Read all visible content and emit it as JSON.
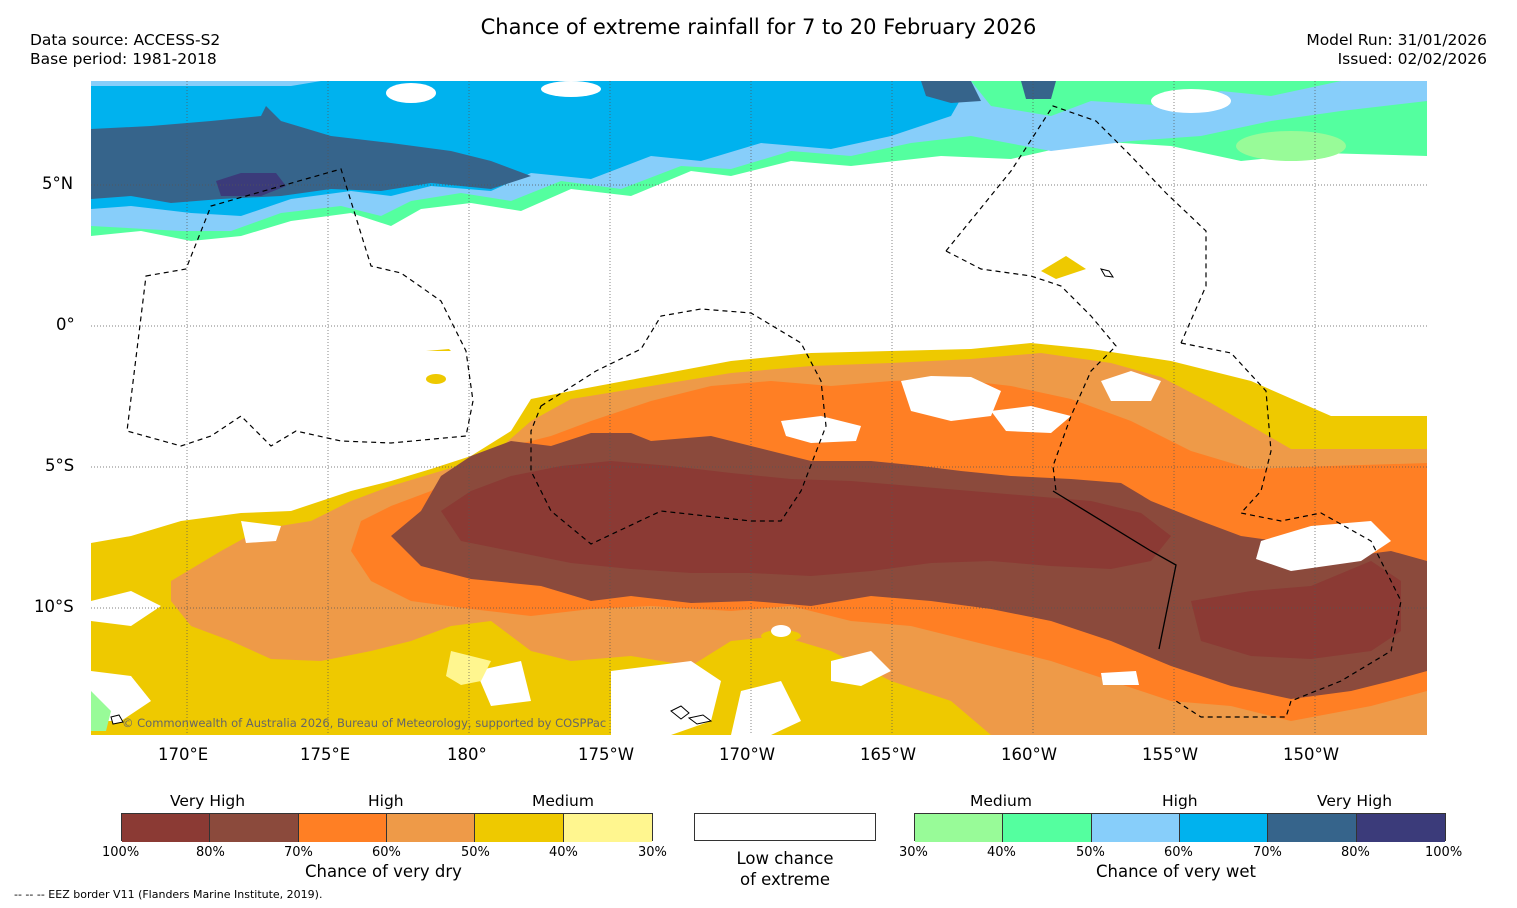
{
  "header": {
    "title": "Chance of extreme rainfall for 7 to 20 February 2026",
    "data_source": "Data source: ACCESS-S2",
    "base_period": "Base period: 1981-2018",
    "model_run": "Model Run: 31/01/2026",
    "issued": "Issued: 02/02/2026"
  },
  "map": {
    "lat_labels": [
      "5°N",
      "0°",
      "5°S",
      "10°S"
    ],
    "lon_labels": [
      "170°E",
      "175°E",
      "180°",
      "175°W",
      "170°W",
      "165°W",
      "160°W",
      "155°W",
      "150°W"
    ],
    "copyright": "© Commonwealth of Australia 2026, Bureau of Meteorology, supported by COSPPac"
  },
  "legend": {
    "dry": {
      "categories": [
        "Very High",
        "High",
        "Medium"
      ],
      "ticks": [
        "100%",
        "80%",
        "70%",
        "60%",
        "50%",
        "40%",
        "30%"
      ],
      "caption": "Chance of very dry",
      "colors": [
        "#8b3a34",
        "#8b4a3c",
        "#ff7f24",
        "#ee9a48",
        "#eec900",
        "#fff68f"
      ]
    },
    "low": {
      "line1": "Low chance",
      "line2": "of extreme"
    },
    "wet": {
      "categories": [
        "Medium",
        "High",
        "Very High"
      ],
      "ticks": [
        "30%",
        "40%",
        "50%",
        "60%",
        "70%",
        "80%",
        "100%"
      ],
      "caption": "Chance of very wet",
      "colors": [
        "#98fb98",
        "#54ff9f",
        "#87cefa",
        "#00b2ee",
        "#36648b",
        "#3b3b7a"
      ]
    }
  },
  "footnote": "-- -- -- EEZ border V11 (Flanders Marine Institute, 2019)."
}
